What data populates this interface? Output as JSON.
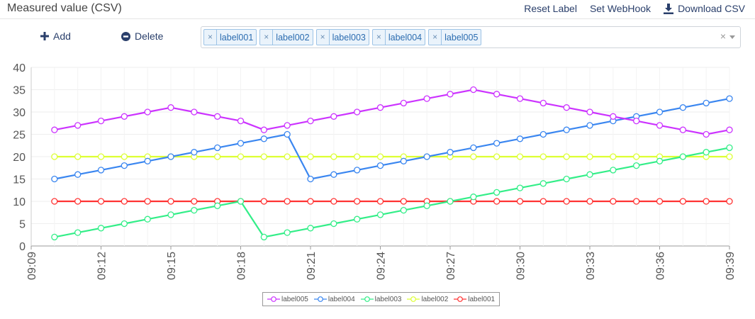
{
  "header": {
    "title": "Measured value (CSV)",
    "reset_label": "Reset Label",
    "set_webhook": "Set WebHook",
    "download_csv": "Download CSV"
  },
  "toolbar": {
    "add_label": "Add",
    "delete_label": "Delete",
    "selected_labels": [
      "label001",
      "label002",
      "label003",
      "label004",
      "label005"
    ],
    "clear_symbol": "×"
  },
  "colors": {
    "label005": "#cc33ff",
    "label004": "#3a86f0",
    "label003": "#33ee88",
    "label002": "#ddff33",
    "label001": "#ff3333"
  },
  "chart_data": {
    "type": "line",
    "x": [
      "09:10",
      "09:11",
      "09:12",
      "09:13",
      "09:14",
      "09:15",
      "09:16",
      "09:17",
      "09:18",
      "09:19",
      "09:20",
      "09:21",
      "09:22",
      "09:23",
      "09:24",
      "09:25",
      "09:26",
      "09:27",
      "09:28",
      "09:29",
      "09:30",
      "09:31",
      "09:32",
      "09:33",
      "09:34",
      "09:35",
      "09:36",
      "09:37",
      "09:38",
      "09:39"
    ],
    "x_ticks": [
      "09:09",
      "09:12",
      "09:15",
      "09:18",
      "09:21",
      "09:24",
      "09:27",
      "09:30",
      "09:33",
      "09:36",
      "09:39"
    ],
    "ylim": [
      0,
      40
    ],
    "y_ticks": [
      0,
      5,
      10,
      15,
      20,
      25,
      30,
      35,
      40
    ],
    "grid": true,
    "legend_position": "bottom-center",
    "series": [
      {
        "name": "label005",
        "values": [
          26,
          27,
          28,
          29,
          30,
          31,
          30,
          29,
          28,
          26,
          27,
          28,
          29,
          30,
          31,
          32,
          33,
          34,
          35,
          34,
          33,
          32,
          31,
          30,
          29,
          28,
          27,
          26,
          25,
          26
        ]
      },
      {
        "name": "label004",
        "values": [
          15,
          16,
          17,
          18,
          19,
          20,
          21,
          22,
          23,
          24,
          25,
          15,
          16,
          17,
          18,
          19,
          20,
          21,
          22,
          23,
          24,
          25,
          26,
          27,
          28,
          29,
          30,
          31,
          32,
          33
        ]
      },
      {
        "name": "label003",
        "values": [
          2,
          3,
          4,
          5,
          6,
          7,
          8,
          9,
          10,
          2,
          3,
          4,
          5,
          6,
          7,
          8,
          9,
          10,
          11,
          12,
          13,
          14,
          15,
          16,
          17,
          18,
          19,
          20,
          21,
          22
        ]
      },
      {
        "name": "label002",
        "values": [
          20,
          20,
          20,
          20,
          20,
          20,
          20,
          20,
          20,
          20,
          20,
          20,
          20,
          20,
          20,
          20,
          20,
          20,
          20,
          20,
          20,
          20,
          20,
          20,
          20,
          20,
          20,
          20,
          20,
          20
        ]
      },
      {
        "name": "label001",
        "values": [
          10,
          10,
          10,
          10,
          10,
          10,
          10,
          10,
          10,
          10,
          10,
          10,
          10,
          10,
          10,
          10,
          10,
          10,
          10,
          10,
          10,
          10,
          10,
          10,
          10,
          10,
          10,
          10,
          10,
          10
        ]
      }
    ]
  }
}
